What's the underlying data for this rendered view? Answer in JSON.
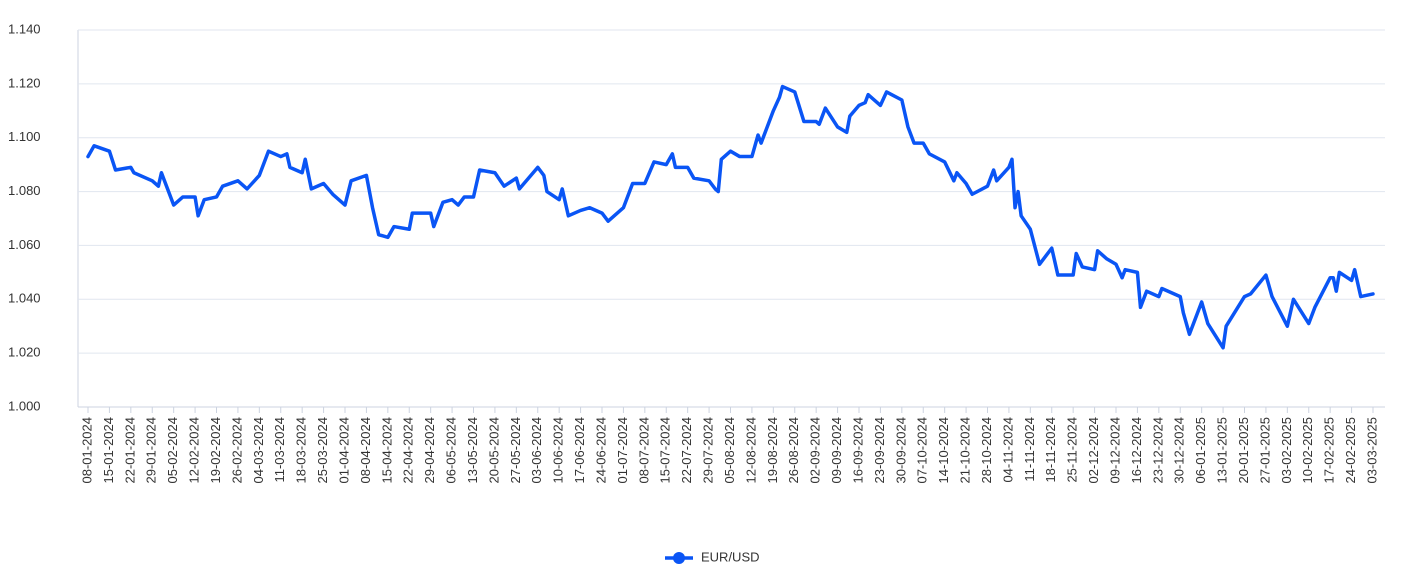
{
  "chart_data": {
    "type": "line",
    "x": [
      "08-01-2024",
      "10-01-2024",
      "15-01-2024",
      "17-01-2024",
      "22-01-2024",
      "23-01-2024",
      "29-01-2024",
      "31-01-2024",
      "01-02-2024",
      "05-02-2024",
      "08-02-2024",
      "12-02-2024",
      "13-02-2024",
      "15-02-2024",
      "19-02-2024",
      "21-02-2024",
      "26-02-2024",
      "29-02-2024",
      "04-03-2024",
      "07-03-2024",
      "11-03-2024",
      "13-03-2024",
      "14-03-2024",
      "18-03-2024",
      "19-03-2024",
      "21-03-2024",
      "25-03-2024",
      "28-03-2024",
      "01-04-2024",
      "03-04-2024",
      "08-04-2024",
      "10-04-2024",
      "12-04-2024",
      "15-04-2024",
      "17-04-2024",
      "22-04-2024",
      "23-04-2024",
      "29-04-2024",
      "30-04-2024",
      "03-05-2024",
      "06-05-2024",
      "08-05-2024",
      "10-05-2024",
      "13-05-2024",
      "15-05-2024",
      "20-05-2024",
      "23-05-2024",
      "27-05-2024",
      "28-05-2024",
      "03-06-2024",
      "05-06-2024",
      "06-06-2024",
      "10-06-2024",
      "11-06-2024",
      "13-06-2024",
      "17-06-2024",
      "20-06-2024",
      "24-06-2024",
      "26-06-2024",
      "01-07-2024",
      "04-07-2024",
      "08-07-2024",
      "11-07-2024",
      "15-07-2024",
      "17-07-2024",
      "18-07-2024",
      "22-07-2024",
      "24-07-2024",
      "29-07-2024",
      "31-07-2024",
      "01-08-2024",
      "02-08-2024",
      "05-08-2024",
      "08-08-2024",
      "12-08-2024",
      "14-08-2024",
      "15-08-2024",
      "19-08-2024",
      "21-08-2024",
      "22-08-2024",
      "26-08-2024",
      "29-08-2024",
      "02-09-2024",
      "03-09-2024",
      "05-09-2024",
      "09-09-2024",
      "12-09-2024",
      "13-09-2024",
      "16-09-2024",
      "18-09-2024",
      "19-09-2024",
      "23-09-2024",
      "25-09-2024",
      "30-09-2024",
      "02-10-2024",
      "04-10-2024",
      "07-10-2024",
      "09-10-2024",
      "14-10-2024",
      "17-10-2024",
      "18-10-2024",
      "21-10-2024",
      "23-10-2024",
      "28-10-2024",
      "30-10-2024",
      "31-10-2024",
      "04-11-2024",
      "05-11-2024",
      "06-11-2024",
      "07-11-2024",
      "08-11-2024",
      "11-11-2024",
      "14-11-2024",
      "18-11-2024",
      "20-11-2024",
      "25-11-2024",
      "26-11-2024",
      "28-11-2024",
      "02-12-2024",
      "03-12-2024",
      "06-12-2024",
      "09-12-2024",
      "11-12-2024",
      "12-12-2024",
      "16-12-2024",
      "17-12-2024",
      "19-12-2024",
      "23-12-2024",
      "24-12-2024",
      "30-12-2024",
      "31-12-2024",
      "02-01-2025",
      "06-01-2025",
      "08-01-2025",
      "13-01-2025",
      "14-01-2025",
      "20-01-2025",
      "22-01-2025",
      "27-01-2025",
      "29-01-2025",
      "03-02-2025",
      "05-02-2025",
      "10-02-2025",
      "12-02-2025",
      "17-02-2025",
      "18-02-2025",
      "19-02-2025",
      "20-02-2025",
      "24-02-2025",
      "25-02-2025",
      "27-02-2025",
      "03-03-2025"
    ],
    "series": [
      {
        "name": "EUR/USD",
        "color": "#0a55f5",
        "values": [
          1.093,
          1.097,
          1.095,
          1.088,
          1.089,
          1.087,
          1.084,
          1.082,
          1.087,
          1.075,
          1.078,
          1.078,
          1.071,
          1.077,
          1.078,
          1.082,
          1.084,
          1.081,
          1.086,
          1.095,
          1.093,
          1.094,
          1.089,
          1.087,
          1.092,
          1.081,
          1.083,
          1.079,
          1.075,
          1.084,
          1.086,
          1.074,
          1.064,
          1.063,
          1.067,
          1.066,
          1.072,
          1.072,
          1.067,
          1.076,
          1.077,
          1.075,
          1.078,
          1.078,
          1.088,
          1.087,
          1.082,
          1.085,
          1.081,
          1.089,
          1.086,
          1.08,
          1.077,
          1.081,
          1.071,
          1.073,
          1.074,
          1.072,
          1.069,
          1.074,
          1.083,
          1.083,
          1.091,
          1.09,
          1.094,
          1.089,
          1.089,
          1.085,
          1.084,
          1.081,
          1.08,
          1.092,
          1.095,
          1.093,
          1.093,
          1.101,
          1.098,
          1.11,
          1.115,
          1.119,
          1.117,
          1.106,
          1.106,
          1.105,
          1.111,
          1.104,
          1.102,
          1.108,
          1.112,
          1.113,
          1.116,
          1.112,
          1.117,
          1.114,
          1.104,
          1.098,
          1.098,
          1.094,
          1.091,
          1.084,
          1.087,
          1.083,
          1.079,
          1.082,
          1.088,
          1.084,
          1.089,
          1.092,
          1.074,
          1.08,
          1.071,
          1.066,
          1.053,
          1.059,
          1.049,
          1.049,
          1.057,
          1.052,
          1.051,
          1.058,
          1.055,
          1.053,
          1.048,
          1.051,
          1.05,
          1.037,
          1.043,
          1.041,
          1.044,
          1.041,
          1.035,
          1.027,
          1.039,
          1.031,
          1.022,
          1.03,
          1.041,
          1.042,
          1.049,
          1.041,
          1.03,
          1.04,
          1.031,
          1.037,
          1.048,
          1.048,
          1.043,
          1.05,
          1.047,
          1.051,
          1.041,
          1.042
        ]
      }
    ],
    "xlim": [
      "08-01-2024",
      "03-03-2025"
    ],
    "xticks": [
      "08-01-2024",
      "15-01-2024",
      "22-01-2024",
      "29-01-2024",
      "05-02-2024",
      "12-02-2024",
      "19-02-2024",
      "26-02-2024",
      "04-03-2024",
      "11-03-2024",
      "18-03-2024",
      "25-03-2024",
      "01-04-2024",
      "08-04-2024",
      "15-04-2024",
      "22-04-2024",
      "29-04-2024",
      "06-05-2024",
      "13-05-2024",
      "20-05-2024",
      "27-05-2024",
      "03-06-2024",
      "10-06-2024",
      "17-06-2024",
      "24-06-2024",
      "01-07-2024",
      "08-07-2024",
      "15-07-2024",
      "22-07-2024",
      "29-07-2024",
      "05-08-2024",
      "12-08-2024",
      "19-08-2024",
      "26-08-2024",
      "02-09-2024",
      "09-09-2024",
      "16-09-2024",
      "23-09-2024",
      "30-09-2024",
      "07-10-2024",
      "14-10-2024",
      "21-10-2024",
      "28-10-2024",
      "04-11-2024",
      "11-11-2024",
      "18-11-2024",
      "25-11-2024",
      "02-12-2024",
      "09-12-2024",
      "16-12-2024",
      "23-12-2024",
      "30-12-2024",
      "06-01-2025",
      "13-01-2025",
      "20-01-2025",
      "27-01-2025",
      "03-02-2025",
      "10-02-2025",
      "17-02-2025",
      "24-02-2025",
      "03-03-2025"
    ],
    "ylim": [
      1,
      1.14
    ],
    "yticks": [
      {
        "value": 1,
        "label": "1.000"
      },
      {
        "value": 1.02,
        "label": "1.020"
      },
      {
        "value": 1.04,
        "label": "1.040"
      },
      {
        "value": 1.06,
        "label": "1.060"
      },
      {
        "value": 1.08,
        "label": "1.080"
      },
      {
        "value": 1.1,
        "label": "1.100"
      },
      {
        "value": 1.12,
        "label": "1.120"
      },
      {
        "value": 1.14,
        "label": "1.140"
      }
    ],
    "grid": true
  }
}
